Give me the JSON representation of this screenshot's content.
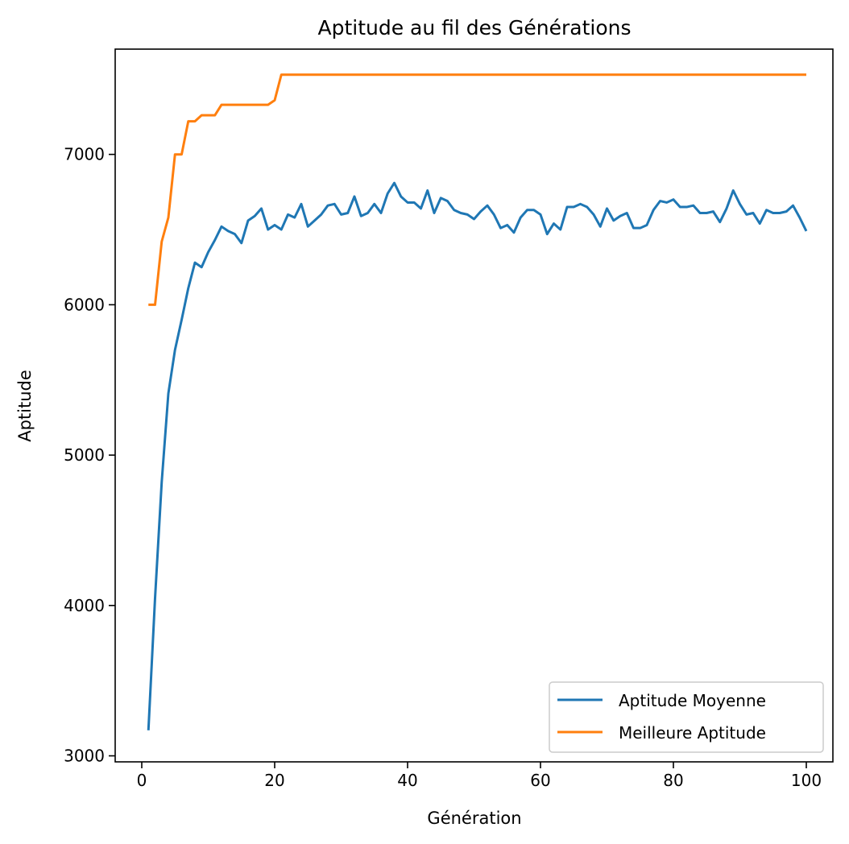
{
  "chart_data": {
    "type": "line",
    "title": "Aptitude au fil des Générations",
    "xlabel": "Génération",
    "ylabel": "Aptitude",
    "xlim": [
      -4,
      104
    ],
    "ylim": [
      2960,
      7700
    ],
    "xticks": [
      0,
      20,
      40,
      60,
      80,
      100
    ],
    "yticks": [
      3000,
      4000,
      5000,
      6000,
      7000
    ],
    "grid": false,
    "legend_position": "lower right",
    "x": [
      1,
      2,
      3,
      4,
      5,
      6,
      7,
      8,
      9,
      10,
      11,
      12,
      13,
      14,
      15,
      16,
      17,
      18,
      19,
      20,
      21,
      22,
      23,
      24,
      25,
      26,
      27,
      28,
      29,
      30,
      31,
      32,
      33,
      34,
      35,
      36,
      37,
      38,
      39,
      40,
      41,
      42,
      43,
      44,
      45,
      46,
      47,
      48,
      49,
      50,
      51,
      52,
      53,
      54,
      55,
      56,
      57,
      58,
      59,
      60,
      61,
      62,
      63,
      64,
      65,
      66,
      67,
      68,
      69,
      70,
      71,
      72,
      73,
      74,
      75,
      76,
      77,
      78,
      79,
      80,
      81,
      82,
      83,
      84,
      85,
      86,
      87,
      88,
      89,
      90,
      91,
      92,
      93,
      94,
      95,
      96,
      97,
      98,
      99,
      100
    ],
    "series": [
      {
        "name": "Aptitude Moyenne",
        "color": "#1f77b4",
        "values": [
          3170,
          4050,
          4820,
          5410,
          5700,
          5900,
          6110,
          6280,
          6250,
          6350,
          6430,
          6520,
          6490,
          6470,
          6410,
          6560,
          6590,
          6640,
          6500,
          6530,
          6500,
          6600,
          6580,
          6670,
          6520,
          6560,
          6600,
          6660,
          6670,
          6600,
          6610,
          6720,
          6590,
          6610,
          6670,
          6610,
          6740,
          6810,
          6720,
          6680,
          6680,
          6640,
          6760,
          6610,
          6710,
          6690,
          6630,
          6610,
          6600,
          6570,
          6620,
          6660,
          6600,
          6510,
          6530,
          6480,
          6580,
          6630,
          6630,
          6600,
          6470,
          6540,
          6500,
          6650,
          6650,
          6670,
          6650,
          6600,
          6520,
          6640,
          6560,
          6590,
          6610,
          6510,
          6510,
          6530,
          6630,
          6690,
          6680,
          6700,
          6650,
          6650,
          6660,
          6610,
          6610,
          6620,
          6550,
          6640,
          6760,
          6670,
          6600,
          6610,
          6540,
          6630,
          6610,
          6610,
          6620,
          6660,
          6580,
          6490
        ]
      },
      {
        "name": "Meilleure Aptitude",
        "color": "#ff7f0e",
        "values": [
          6000,
          6000,
          6420,
          6580,
          7000,
          7000,
          7220,
          7220,
          7260,
          7260,
          7260,
          7330,
          7330,
          7330,
          7330,
          7330,
          7330,
          7330,
          7330,
          7360,
          7530,
          7530,
          7530,
          7530,
          7530,
          7530,
          7530,
          7530,
          7530,
          7530,
          7530,
          7530,
          7530,
          7530,
          7530,
          7530,
          7530,
          7530,
          7530,
          7530,
          7530,
          7530,
          7530,
          7530,
          7530,
          7530,
          7530,
          7530,
          7530,
          7530,
          7530,
          7530,
          7530,
          7530,
          7530,
          7530,
          7530,
          7530,
          7530,
          7530,
          7530,
          7530,
          7530,
          7530,
          7530,
          7530,
          7530,
          7530,
          7530,
          7530,
          7530,
          7530,
          7530,
          7530,
          7530,
          7530,
          7530,
          7530,
          7530,
          7530,
          7530,
          7530,
          7530,
          7530,
          7530,
          7530,
          7530,
          7530,
          7530,
          7530,
          7530,
          7530,
          7530,
          7530,
          7530,
          7530,
          7530,
          7530,
          7530,
          7530
        ]
      }
    ]
  }
}
